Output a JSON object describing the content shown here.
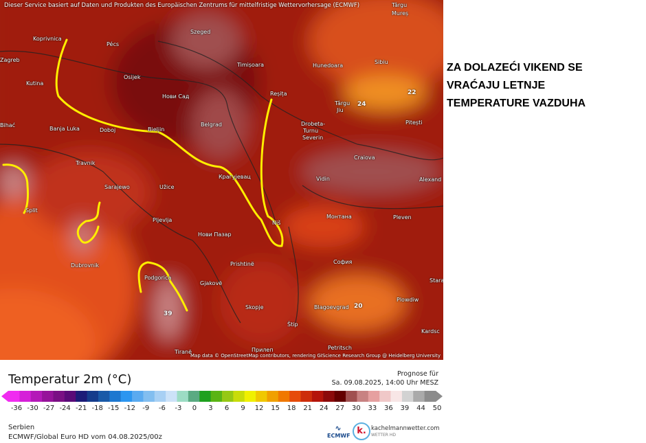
{
  "disclaimer": "Dieser Service basiert auf Daten und Produkten des Europäischen Zentrums für mittelfristige Wettervorhersage (ECMWF)",
  "headline": [
    "ZA DOLAZEĆI VIKEND SE",
    "VRAĆAJU LETNJE",
    "TEMPERATURE VAZDUHA"
  ],
  "cities": [
    [
      "Koprivnica",
      48,
      52
    ],
    [
      "Pécs",
      155,
      60
    ],
    [
      "Szeged",
      277,
      42
    ],
    [
      "Zagreb",
      0,
      83
    ],
    [
      "Osijek",
      180,
      108
    ],
    [
      "Kutina",
      38,
      117
    ],
    [
      "Нови Сад",
      236,
      136
    ],
    [
      "Timișoara",
      345,
      90
    ],
    [
      "Hunedoara",
      455,
      91
    ],
    [
      "Sibiu",
      545,
      86
    ],
    [
      "Târgu",
      570,
      3
    ],
    [
      "Mureș",
      570,
      15
    ],
    [
      "Reșița",
      393,
      132
    ],
    [
      "Târgu",
      487,
      146
    ],
    [
      "Jiu",
      490,
      156
    ],
    [
      "Pitești",
      590,
      174
    ],
    [
      "Belgrad",
      292,
      177
    ],
    [
      "Drobeta-",
      438,
      176
    ],
    [
      "Turnu",
      441,
      186
    ],
    [
      "Severin",
      440,
      196
    ],
    [
      "Bihać",
      0,
      178
    ],
    [
      "Banja Luka",
      72,
      183
    ],
    [
      "Doboj",
      145,
      185
    ],
    [
      "Bieljin",
      215,
      184
    ],
    [
      "Craiova",
      515,
      225
    ],
    [
      "Travnik",
      110,
      233
    ],
    [
      "Крагујевац",
      318,
      253
    ],
    [
      "Vidin",
      460,
      256
    ],
    [
      "Alexand",
      610,
      257
    ],
    [
      "Sarajewo",
      152,
      268
    ],
    [
      "Užice",
      232,
      268
    ],
    [
      "Split",
      37,
      302
    ],
    [
      "Pljevlja",
      222,
      316
    ],
    [
      "Niš",
      396,
      320
    ],
    [
      "Монтана",
      475,
      311
    ],
    [
      "Pleven",
      572,
      312
    ],
    [
      "Нови Пазар",
      288,
      337
    ],
    [
      "Dubrovnik",
      103,
      382
    ],
    [
      "Prishtinë",
      335,
      380
    ],
    [
      "София",
      485,
      377
    ],
    [
      "Podgorica",
      210,
      400
    ],
    [
      "Gjakovë",
      291,
      408
    ],
    [
      "Stara",
      625,
      404
    ],
    [
      "Plowdiw",
      577,
      432
    ],
    [
      "Skopje",
      357,
      443
    ],
    [
      "Blagoevgrad",
      457,
      443
    ],
    [
      "Štip",
      418,
      468
    ],
    [
      "Kardsc",
      613,
      478
    ],
    [
      "Petritsch",
      477,
      502
    ],
    [
      "Прилеп",
      366,
      505
    ],
    [
      "Tiranë",
      254,
      508
    ]
  ],
  "map_values": [
    [
      "22",
      593,
      130
    ],
    [
      "24",
      520,
      147
    ],
    [
      "20",
      515,
      441
    ],
    [
      "39",
      238,
      452
    ]
  ],
  "attribution": "Map data © OpenStreetMap contributors, rendering GIScience Research Group @ Heidelberg University",
  "legend": {
    "title": "Temperatur 2m (°C)",
    "prognose_label": "Prognose für",
    "prognose_time": "Sa. 09.08.2025, 14:00 Uhr MESZ",
    "ticks": [
      "-36",
      "-30",
      "-27",
      "-24",
      "-21",
      "-18",
      "-15",
      "-12",
      "-9",
      "-6",
      "-3",
      "0",
      "3",
      "6",
      "9",
      "12",
      "15",
      "18",
      "21",
      "24",
      "27",
      "30",
      "33",
      "36",
      "39",
      "44",
      "50"
    ],
    "colors": [
      "#f02cf0",
      "#d520d8",
      "#b419b8",
      "#96139a",
      "#7a0f84",
      "#5a0a78",
      "#1c1c78",
      "#153c8c",
      "#1a5aa8",
      "#1e78d0",
      "#2c96f0",
      "#5aaaf0",
      "#82bef0",
      "#a8d0f4",
      "#cce2f8",
      "#9cdcc4",
      "#5aaa82",
      "#1ea01e",
      "#5ab414",
      "#96c814",
      "#c8dc0a",
      "#f0f000",
      "#f0c800",
      "#f0a000",
      "#f07800",
      "#e64b0a",
      "#cd2d0a",
      "#b4140a",
      "#8c0a0a",
      "#640000",
      "#a05050",
      "#c88282",
      "#e6a0a0",
      "#f0c8c8",
      "#f8e6e6",
      "#d2d2d2",
      "#aaaaaa",
      "#8c8c8c"
    ]
  },
  "region": "Serbien",
  "model_run": "ECMWF/Global Euro HD vom  04.08.2025/00z",
  "logos": {
    "ecmwf": "ECMWF",
    "site": "kachelmannwetter.com",
    "site_sub": "WETTER HD"
  }
}
